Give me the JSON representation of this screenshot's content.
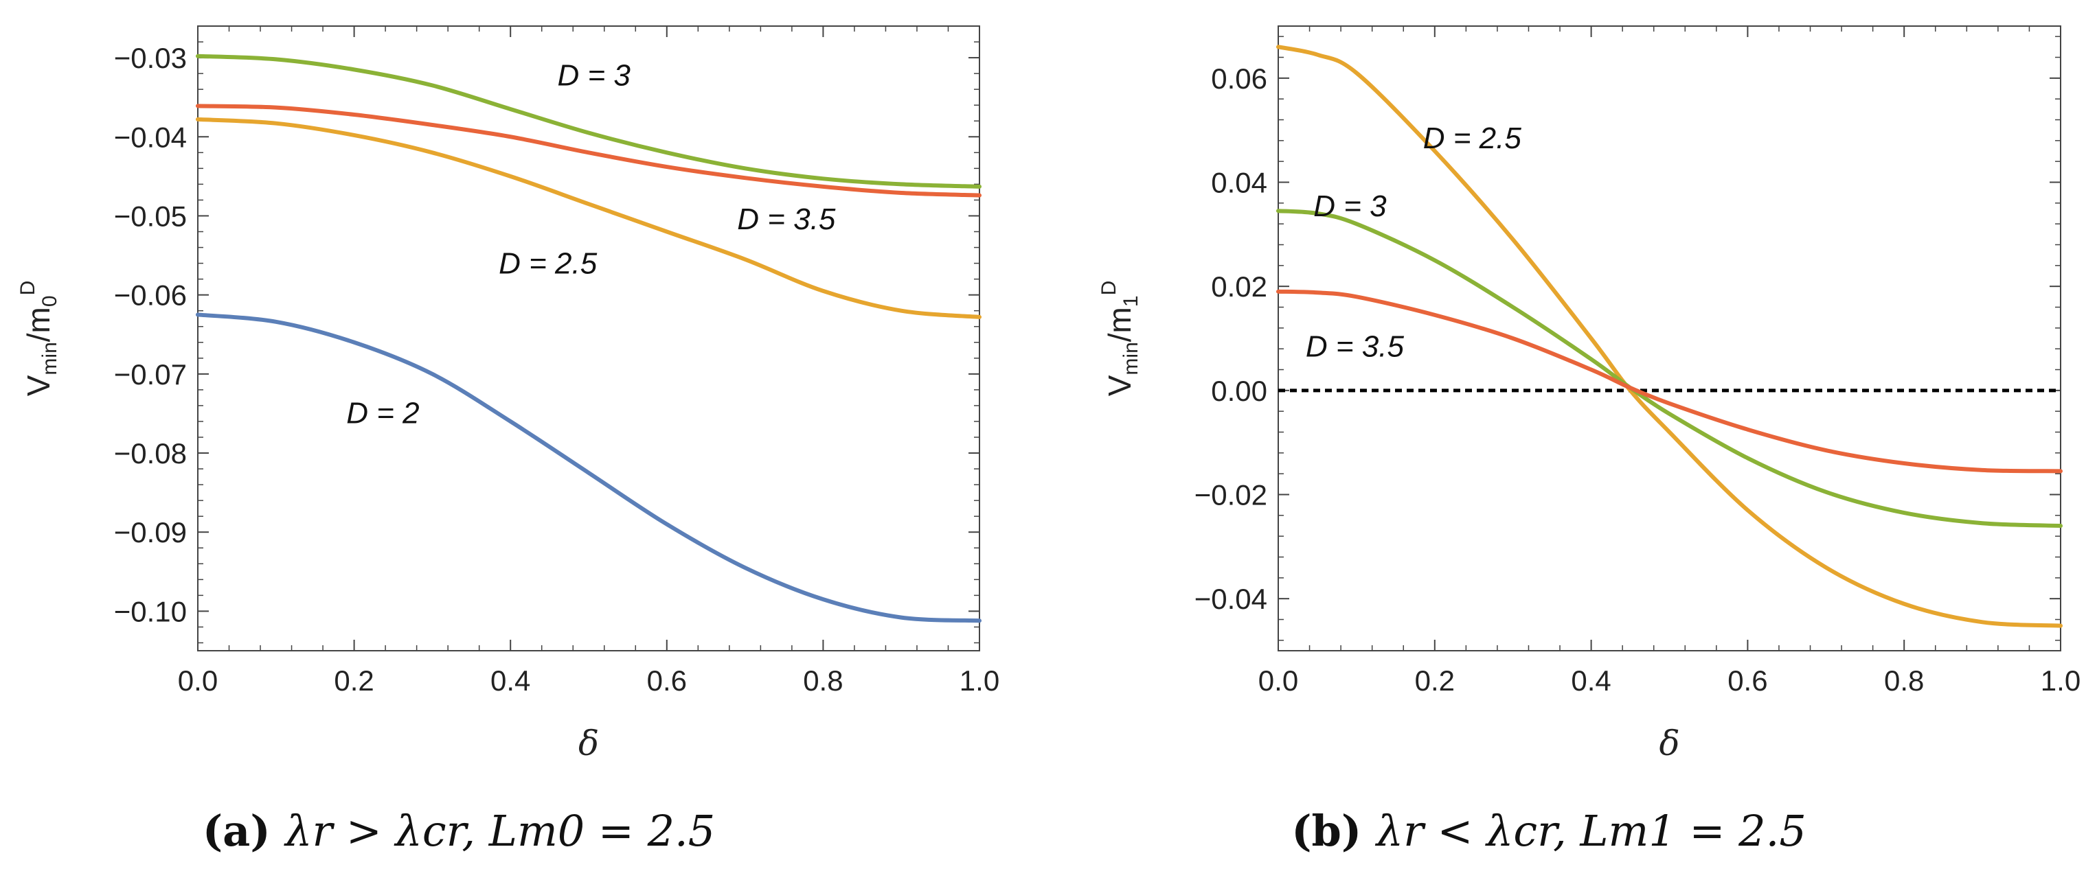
{
  "colors": {
    "blue": "#5b7fb8",
    "orange": "#e6a52e",
    "red": "#e8643a",
    "green": "#8bb236",
    "frame": "#444444",
    "zero_line": "#000000"
  },
  "chart_data": [
    {
      "type": "line",
      "caption": {
        "tag": "(a)",
        "text": "λr > λcr, Lm0 = 2.5"
      },
      "xlabel": "δ",
      "ylabel": "Vmin/m0^D",
      "xlim": [
        0,
        1
      ],
      "ylim": [
        -0.105,
        -0.026
      ],
      "xticks": [
        0,
        0.2,
        0.4,
        0.6,
        0.8,
        1.0
      ],
      "xtick_labels": [
        "0.0",
        "0.2",
        "0.4",
        "0.6",
        "0.8",
        "1.0"
      ],
      "yticks": [
        -0.03,
        -0.04,
        -0.05,
        -0.06,
        -0.07,
        -0.08,
        -0.09,
        -0.1
      ],
      "ytick_labels": [
        "−0.03",
        "−0.04",
        "−0.05",
        "−0.06",
        "−0.07",
        "−0.08",
        "−0.09",
        "−0.10"
      ],
      "series": [
        {
          "name": "D = 2",
          "color": "blue",
          "label": "D = 2",
          "x": [
            0,
            0.1,
            0.2,
            0.3,
            0.4,
            0.5,
            0.6,
            0.7,
            0.8,
            0.9,
            1.0
          ],
          "values": [
            -0.0625,
            -0.0634,
            -0.066,
            -0.07,
            -0.076,
            -0.0825,
            -0.089,
            -0.0945,
            -0.0985,
            -0.1008,
            -0.1012
          ]
        },
        {
          "name": "D = 2.5",
          "color": "orange",
          "label": "D = 2.5",
          "x": [
            0,
            0.1,
            0.2,
            0.3,
            0.4,
            0.5,
            0.6,
            0.7,
            0.8,
            0.9,
            1.0
          ],
          "values": [
            -0.0378,
            -0.0383,
            -0.0398,
            -0.042,
            -0.045,
            -0.0485,
            -0.052,
            -0.0555,
            -0.0595,
            -0.062,
            -0.0628
          ]
        },
        {
          "name": "D = 3.5",
          "color": "red",
          "label": "D = 3.5",
          "x": [
            0,
            0.1,
            0.2,
            0.3,
            0.4,
            0.5,
            0.6,
            0.7,
            0.8,
            0.9,
            1.0
          ],
          "values": [
            -0.0361,
            -0.0363,
            -0.0372,
            -0.0385,
            -0.04,
            -0.042,
            -0.0438,
            -0.0452,
            -0.0463,
            -0.0471,
            -0.0474
          ]
        },
        {
          "name": "D = 3",
          "color": "green",
          "label": "D = 3",
          "x": [
            0,
            0.1,
            0.2,
            0.3,
            0.4,
            0.5,
            0.6,
            0.7,
            0.8,
            0.9,
            1.0
          ],
          "values": [
            -0.0298,
            -0.0302,
            -0.0315,
            -0.0335,
            -0.0365,
            -0.0395,
            -0.042,
            -0.044,
            -0.0453,
            -0.046,
            -0.0463
          ]
        }
      ],
      "label_positions": [
        {
          "text": "D = 3",
          "x": 0.46,
          "y": -0.0335
        },
        {
          "text": "D = 3.5",
          "x": 0.69,
          "y": -0.0517
        },
        {
          "text": "D = 2.5",
          "x": 0.385,
          "y": -0.0573
        },
        {
          "text": "D = 2",
          "x": 0.19,
          "y": -0.0762
        }
      ]
    },
    {
      "type": "line",
      "caption": {
        "tag": "(b)",
        "text": "λr < λcr, Lm1 = 2.5"
      },
      "xlabel": "δ",
      "ylabel": "Vmin/m1^D",
      "xlim": [
        0,
        1
      ],
      "ylim": [
        -0.05,
        0.07
      ],
      "xticks": [
        0,
        0.2,
        0.4,
        0.6,
        0.8,
        1.0
      ],
      "xtick_labels": [
        "0.0",
        "0.2",
        "0.4",
        "0.6",
        "0.8",
        "1.0"
      ],
      "yticks": [
        0.06,
        0.04,
        0.02,
        0.0,
        -0.02,
        -0.04
      ],
      "ytick_labels": [
        "0.06",
        "0.04",
        "0.02",
        "0.00",
        "−0.02",
        "−0.04"
      ],
      "zero_line": true,
      "series": [
        {
          "name": "D = 2.5",
          "color": "orange",
          "label": "D = 2.5",
          "x": [
            0,
            0.05,
            0.1,
            0.2,
            0.3,
            0.4,
            0.45,
            0.5,
            0.6,
            0.7,
            0.8,
            0.9,
            1.0
          ],
          "values": [
            0.066,
            0.0645,
            0.061,
            0.046,
            0.029,
            0.01,
            0.0,
            -0.008,
            -0.023,
            -0.034,
            -0.041,
            -0.0445,
            -0.0452
          ]
        },
        {
          "name": "D = 3",
          "color": "green",
          "label": "D = 3",
          "x": [
            0,
            0.05,
            0.1,
            0.2,
            0.3,
            0.4,
            0.45,
            0.5,
            0.6,
            0.7,
            0.8,
            0.9,
            1.0
          ],
          "values": [
            0.0345,
            0.034,
            0.032,
            0.025,
            0.016,
            0.006,
            0.0005,
            -0.0045,
            -0.013,
            -0.0195,
            -0.0235,
            -0.0255,
            -0.026
          ]
        },
        {
          "name": "D = 3.5",
          "color": "red",
          "label": "D = 3.5",
          "x": [
            0,
            0.05,
            0.1,
            0.2,
            0.3,
            0.4,
            0.45,
            0.5,
            0.6,
            0.7,
            0.8,
            0.9,
            1.0
          ],
          "values": [
            0.019,
            0.0188,
            0.018,
            0.0145,
            0.01,
            0.004,
            0.0005,
            -0.0025,
            -0.0075,
            -0.0115,
            -0.014,
            -0.0153,
            -0.0155
          ]
        }
      ],
      "label_positions": [
        {
          "text": "D = 2.5",
          "x": 0.185,
          "y": 0.0465
        },
        {
          "text": "D = 3",
          "x": 0.045,
          "y": 0.0335
        },
        {
          "text": "D = 3.5",
          "x": 0.035,
          "y": 0.0065
        }
      ]
    }
  ]
}
